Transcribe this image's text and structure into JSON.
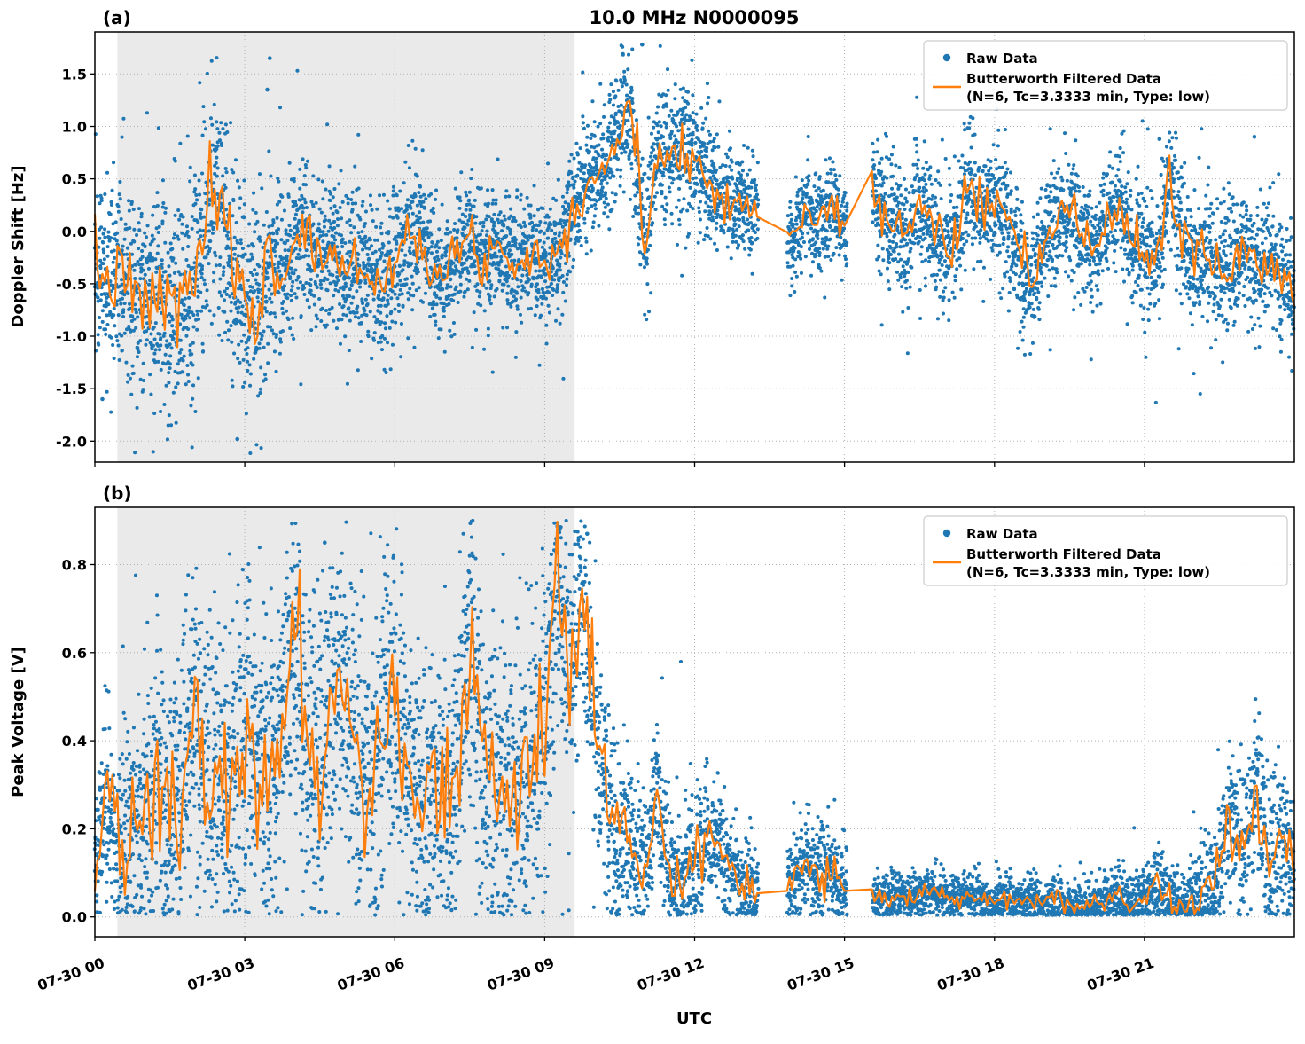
{
  "figure": {
    "title": "10.0 MHz N0000095",
    "background": "#ffffff"
  },
  "style": {
    "raw_color": "#1f77b4",
    "filtered_color": "#ff7f0e",
    "shade_color": "#dcdcdc",
    "grid_color": "#b0b0b0"
  },
  "chart_data": [
    {
      "type": "scatter",
      "panel_label": "(a)",
      "title": "10.0 MHz N0000095",
      "ylabel": "Doppler Shift [Hz]",
      "ylim": [
        -2.2,
        1.9
      ],
      "yticks": [
        -2.0,
        -1.5,
        -1.0,
        -0.5,
        0.0,
        0.5,
        1.0,
        1.5
      ],
      "ytick_labels": [
        "-2.0",
        "-1.5",
        "-1.0",
        "-0.5",
        "0.0",
        "0.5",
        "1.0",
        "1.5"
      ],
      "x_range": [
        0,
        24
      ],
      "xtick_hours": [
        0,
        3,
        6,
        9,
        12,
        15,
        18,
        21
      ],
      "xtick_labels": [
        "07-30 00",
        "07-30 03",
        "07-30 06",
        "07-30 09",
        "07-30 12",
        "07-30 15",
        "07-30 18",
        "07-30 21"
      ],
      "shaded_hours": [
        0.45,
        9.6
      ],
      "gaps_hours": [
        [
          13.27,
          13.85
        ],
        [
          15.05,
          15.55
        ]
      ],
      "grid": true,
      "legend_position": "upper right",
      "legend": {
        "raw": "Raw Data",
        "filtered_line1": "Butterworth Filtered Data",
        "filtered_line2": "(N=6, Tc=3.3333 min, Type: low)"
      },
      "series": {
        "filtered": {
          "name": "Butterworth Filtered Data (N=6, Tc=3.3333 min, Type: low)",
          "x_start": 0,
          "x_step": 0.25,
          "y": [
            -0.3,
            -0.5,
            -0.4,
            -0.62,
            -0.72,
            -0.58,
            -0.75,
            -0.62,
            -0.45,
            0.22,
            0.18,
            -0.25,
            -0.62,
            -0.78,
            -0.3,
            -0.42,
            -0.1,
            0.02,
            -0.3,
            -0.18,
            -0.38,
            -0.28,
            -0.42,
            -0.5,
            -0.28,
            -0.08,
            0.0,
            -0.32,
            -0.45,
            -0.2,
            -0.08,
            -0.3,
            -0.12,
            -0.22,
            -0.28,
            -0.18,
            -0.3,
            -0.22,
            0.15,
            0.38,
            0.55,
            0.65,
            0.95,
            1.1,
            -0.2,
            0.85,
            0.7,
            0.85,
            0.7,
            0.45,
            0.38,
            0.3,
            0.22,
            0.18,
            0.1,
            0.02,
            -0.05,
            0.2,
            0.1,
            0.25,
            0.0,
            0.25,
            0.55,
            0.2,
            0.1,
            -0.1,
            0.3,
            0.1,
            -0.2,
            0.0,
            0.48,
            0.18,
            0.3,
            0.08,
            -0.28,
            -0.5,
            -0.1,
            0.1,
            0.2,
            0.0,
            -0.2,
            0.1,
            0.28,
            -0.1,
            -0.22,
            -0.3,
            0.55,
            -0.1,
            -0.25,
            -0.2,
            -0.4,
            -0.3,
            -0.15,
            -0.35,
            -0.3,
            -0.42,
            -0.5
          ]
        }
      },
      "scatter_spread": {
        "x": [
          0,
          1,
          2,
          3,
          4,
          5,
          6,
          7,
          8,
          9,
          9.6,
          10.2,
          11,
          12,
          12.8,
          13.9,
          15,
          15.6,
          16,
          17,
          18,
          19,
          20,
          21,
          22,
          23,
          24
        ],
        "sd": [
          0.42,
          0.5,
          0.55,
          0.5,
          0.38,
          0.35,
          0.33,
          0.3,
          0.28,
          0.28,
          0.3,
          0.33,
          0.35,
          0.3,
          0.25,
          0.22,
          0.22,
          0.28,
          0.3,
          0.3,
          0.3,
          0.28,
          0.28,
          0.3,
          0.32,
          0.3,
          0.3
        ]
      },
      "scatter_clamp": [
        -2.12,
        1.82
      ],
      "line_jitter": 0.4,
      "outliers": [
        [
          0.15,
          -1.6
        ],
        [
          2.85,
          -1.98
        ],
        [
          3.45,
          1.35
        ],
        [
          3.5,
          1.65
        ],
        [
          10.95,
          1.78
        ],
        [
          21.3,
          0.88
        ],
        [
          23.2,
          0.9
        ]
      ]
    },
    {
      "type": "scatter",
      "panel_label": "(b)",
      "ylabel": "Peak Voltage [V]",
      "xlabel": "UTC",
      "ylim": [
        -0.045,
        0.93
      ],
      "yticks": [
        0.0,
        0.2,
        0.4,
        0.6,
        0.8
      ],
      "ytick_labels": [
        "0.0",
        "0.2",
        "0.4",
        "0.6",
        "0.8"
      ],
      "x_range": [
        0,
        24
      ],
      "xtick_hours": [
        0,
        3,
        6,
        9,
        12,
        15,
        18,
        21
      ],
      "xtick_labels": [
        "07-30 00",
        "07-30 03",
        "07-30 06",
        "07-30 09",
        "07-30 12",
        "07-30 15",
        "07-30 18",
        "07-30 21"
      ],
      "shaded_hours": [
        0.45,
        9.6
      ],
      "gaps_hours": [
        [
          13.27,
          13.85
        ],
        [
          15.05,
          15.55
        ]
      ],
      "grid": true,
      "legend_position": "upper right",
      "legend": {
        "raw": "Raw Data",
        "filtered_line1": "Butterworth Filtered Data",
        "filtered_line2": "(N=6, Tc=3.3333 min, Type: low)"
      },
      "series": {
        "filtered": {
          "name": "Butterworth Filtered Data (N=6, Tc=3.3333 min, Type: low)",
          "x_start": 0,
          "x_step": 0.25,
          "y": [
            0.12,
            0.28,
            0.15,
            0.24,
            0.2,
            0.33,
            0.16,
            0.3,
            0.48,
            0.28,
            0.35,
            0.3,
            0.4,
            0.34,
            0.3,
            0.44,
            0.62,
            0.38,
            0.35,
            0.48,
            0.54,
            0.34,
            0.3,
            0.4,
            0.5,
            0.34,
            0.25,
            0.3,
            0.26,
            0.32,
            0.64,
            0.36,
            0.3,
            0.26,
            0.32,
            0.34,
            0.44,
            0.78,
            0.52,
            0.8,
            0.45,
            0.28,
            0.18,
            0.14,
            0.1,
            0.28,
            0.1,
            0.08,
            0.12,
            0.2,
            0.17,
            0.1,
            0.07,
            0.06,
            0.05,
            0.05,
            0.1,
            0.12,
            0.08,
            0.1,
            0.07,
            0.06,
            0.05,
            0.04,
            0.05,
            0.04,
            0.05,
            0.06,
            0.05,
            0.04,
            0.05,
            0.04,
            0.03,
            0.04,
            0.03,
            0.04,
            0.03,
            0.04,
            0.03,
            0.02,
            0.03,
            0.04,
            0.05,
            0.03,
            0.04,
            0.08,
            0.04,
            0.03,
            0.04,
            0.05,
            0.1,
            0.24,
            0.14,
            0.3,
            0.12,
            0.2,
            0.1
          ]
        }
      },
      "scatter_spread": {
        "x": [
          0,
          1,
          2,
          3,
          4,
          5,
          6,
          7,
          8,
          9,
          9.6,
          10.2,
          11,
          12,
          12.8,
          13.9,
          15,
          15.6,
          16,
          17,
          18,
          19,
          20,
          21,
          22,
          23,
          24
        ],
        "sd": [
          0.1,
          0.14,
          0.17,
          0.18,
          0.18,
          0.17,
          0.17,
          0.17,
          0.17,
          0.18,
          0.16,
          0.12,
          0.08,
          0.08,
          0.05,
          0.05,
          0.05,
          0.03,
          0.028,
          0.026,
          0.025,
          0.025,
          0.025,
          0.035,
          0.05,
          0.09,
          0.09
        ]
      },
      "scatter_clamp": [
        0.004,
        0.9
      ],
      "line_jitter": 0.45,
      "outliers": [
        [
          9.3,
          0.88
        ],
        [
          9.85,
          0.87
        ],
        [
          4.6,
          0.85
        ]
      ]
    }
  ]
}
